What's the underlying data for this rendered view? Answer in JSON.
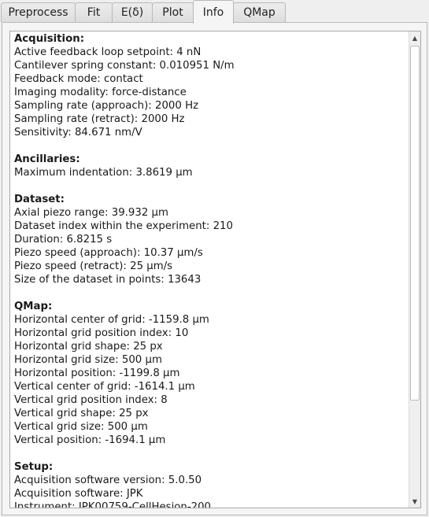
{
  "tabs": [
    {
      "label": "Preprocess"
    },
    {
      "label": "Fit"
    },
    {
      "label": "E(δ)"
    },
    {
      "label": "Plot"
    },
    {
      "label": "Info"
    },
    {
      "label": "QMap"
    }
  ],
  "active_tab": "Info",
  "info": {
    "sections": [
      {
        "title": "Acquisition:",
        "lines": [
          "Active feedback loop setpoint: 4 nN",
          "Cantilever spring constant: 0.010951 N/m",
          "Feedback mode: contact",
          "Imaging modality: force-distance",
          "Sampling rate (approach): 2000 Hz",
          "Sampling rate (retract): 2000 Hz",
          "Sensitivity: 84.671 nm/V"
        ]
      },
      {
        "title": "Ancillaries:",
        "lines": [
          "Maximum indentation: 3.8619 µm"
        ]
      },
      {
        "title": "Dataset:",
        "lines": [
          "Axial piezo range: 39.932 µm",
          "Dataset index within the experiment: 210",
          "Duration: 6.8215 s",
          "Piezo speed (approach): 10.37 µm/s",
          "Piezo speed (retract): 25 µm/s",
          "Size of the dataset in points: 13643"
        ]
      },
      {
        "title": "QMap:",
        "lines": [
          "Horizontal center of grid: -1159.8 µm",
          "Horizontal grid position index: 10",
          "Horizontal grid shape: 25 px",
          "Horizontal grid size: 500 µm",
          "Horizontal position: -1199.8 µm",
          "Vertical center of grid: -1614.1 µm",
          "Vertical grid position index: 8",
          "Vertical grid shape: 25 px",
          "Vertical grid size: 500 µm",
          "Vertical position: -1694.1 µm"
        ]
      },
      {
        "title": "Setup:",
        "lines": [
          "Acquisition software version: 5.0.50",
          "Acquisition software: JPK",
          "Instrument: JPK00759-CellHesion-200"
        ]
      }
    ]
  },
  "scrollbar": {
    "up_icon": "triangle-up",
    "down_icon": "triangle-down"
  }
}
